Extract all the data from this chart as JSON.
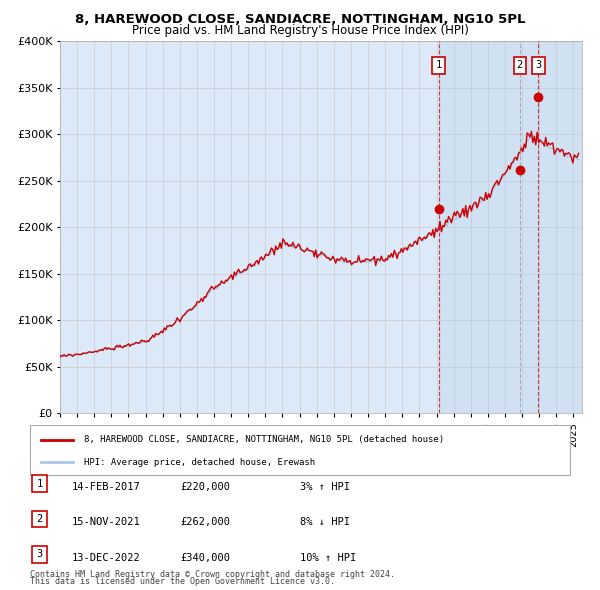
{
  "title1": "8, HAREWOOD CLOSE, SANDIACRE, NOTTINGHAM, NG10 5PL",
  "title2": "Price paid vs. HM Land Registry's House Price Index (HPI)",
  "legend_red": "8, HAREWOOD CLOSE, SANDIACRE, NOTTINGHAM, NG10 5PL (detached house)",
  "legend_blue": "HPI: Average price, detached house, Erewash",
  "sales": [
    {
      "label": "1",
      "date": "14-FEB-2017",
      "price": 220000,
      "note": "3% ↑ HPI",
      "x": 2017.12
    },
    {
      "label": "2",
      "date": "15-NOV-2021",
      "price": 262000,
      "note": "8% ↓ HPI",
      "x": 2021.87
    },
    {
      "label": "3",
      "date": "13-DEC-2022",
      "price": 340000,
      "note": "10% ↑ HPI",
      "x": 2022.95
    }
  ],
  "footer1": "Contains HM Land Registry data © Crown copyright and database right 2024.",
  "footer2": "This data is licensed under the Open Government Licence v3.0.",
  "ylim": [
    0,
    400000
  ],
  "yticks": [
    0,
    50000,
    100000,
    150000,
    200000,
    250000,
    300000,
    350000,
    400000
  ],
  "xlim": [
    1995.0,
    2025.5
  ],
  "bg_color": "#dce9f8",
  "grid_color": "#cccccc",
  "red_color": "#cc0000",
  "blue_color": "#aac8e8",
  "highlight_start": 2017.12
}
